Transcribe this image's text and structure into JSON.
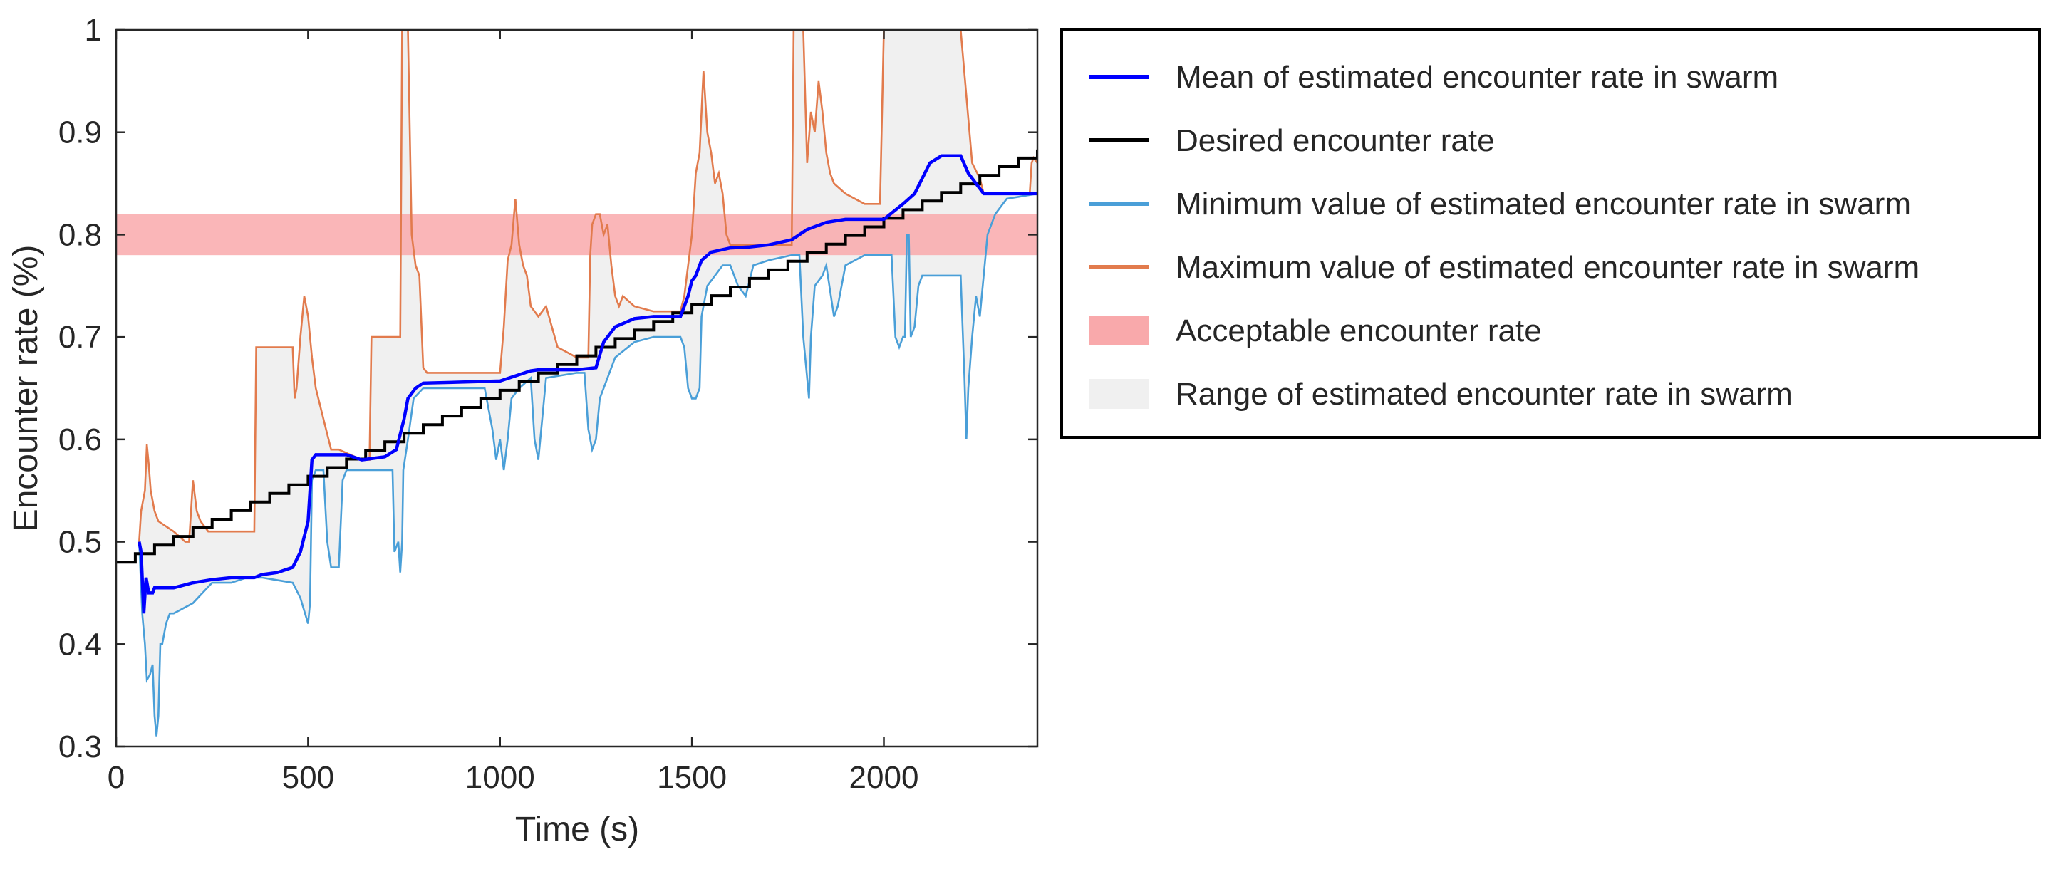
{
  "chart_data": {
    "type": "line",
    "title": "",
    "xlabel": "Time (s)",
    "ylabel": "Encounter rate (%)",
    "xlim": [
      0,
      2400
    ],
    "ylim": [
      0.3,
      1.0
    ],
    "x_ticks": [
      0,
      500,
      1000,
      1500,
      2000
    ],
    "x_tick_labels": [
      "0",
      "500",
      "1000",
      "1500",
      "2000"
    ],
    "y_ticks": [
      0.3,
      0.4,
      0.5,
      0.6,
      0.7,
      0.8,
      0.9,
      1.0
    ],
    "y_tick_labels": [
      "0.3",
      "0.4",
      "0.5",
      "0.6",
      "0.7",
      "0.8",
      "0.9",
      "1"
    ],
    "grid": false,
    "legend_position": "right-outside",
    "colors": {
      "mean": "#0000ff",
      "desired": "#000000",
      "min": "#4a9fd8",
      "max": "#e27b4d",
      "acceptable": "#f9a9ab",
      "range": "#f0f0f0"
    },
    "legend": [
      {
        "key": "mean",
        "label": "Mean of estimated encounter rate in swarm",
        "kind": "line"
      },
      {
        "key": "desired",
        "label": "Desired encounter rate",
        "kind": "line"
      },
      {
        "key": "min",
        "label": "Minimum value of estimated encounter rate in swarm",
        "kind": "line"
      },
      {
        "key": "max",
        "label": "Maximum value of estimated encounter rate in swarm",
        "kind": "line"
      },
      {
        "key": "acceptable",
        "label": "Acceptable encounter rate",
        "kind": "patch"
      },
      {
        "key": "range",
        "label": "Range of estimated encounter rate in swarm",
        "kind": "patch"
      }
    ],
    "acceptable_band": [
      0.78,
      0.82
    ],
    "desired_step": {
      "start": 0.48,
      "increment": 0.0084,
      "interval": 50,
      "x_start": 0,
      "x_end": 2400
    },
    "series": [
      {
        "name": "Mean of estimated encounter rate in swarm",
        "key": "mean",
        "points": [
          [
            60,
            0.5
          ],
          [
            65,
            0.49
          ],
          [
            72,
            0.43
          ],
          [
            78,
            0.465
          ],
          [
            85,
            0.45
          ],
          [
            95,
            0.45
          ],
          [
            100,
            0.455
          ],
          [
            150,
            0.455
          ],
          [
            200,
            0.46
          ],
          [
            250,
            0.463
          ],
          [
            300,
            0.465
          ],
          [
            360,
            0.465
          ],
          [
            380,
            0.468
          ],
          [
            420,
            0.47
          ],
          [
            460,
            0.475
          ],
          [
            480,
            0.49
          ],
          [
            500,
            0.52
          ],
          [
            510,
            0.58
          ],
          [
            520,
            0.585
          ],
          [
            600,
            0.585
          ],
          [
            640,
            0.58
          ],
          [
            700,
            0.583
          ],
          [
            730,
            0.59
          ],
          [
            750,
            0.62
          ],
          [
            760,
            0.64
          ],
          [
            780,
            0.65
          ],
          [
            800,
            0.655
          ],
          [
            900,
            0.656
          ],
          [
            1000,
            0.657
          ],
          [
            1040,
            0.662
          ],
          [
            1080,
            0.667
          ],
          [
            1100,
            0.668
          ],
          [
            1150,
            0.668
          ],
          [
            1200,
            0.668
          ],
          [
            1250,
            0.67
          ],
          [
            1270,
            0.695
          ],
          [
            1300,
            0.71
          ],
          [
            1350,
            0.718
          ],
          [
            1400,
            0.72
          ],
          [
            1470,
            0.72
          ],
          [
            1490,
            0.74
          ],
          [
            1500,
            0.755
          ],
          [
            1510,
            0.76
          ],
          [
            1525,
            0.775
          ],
          [
            1550,
            0.783
          ],
          [
            1600,
            0.787
          ],
          [
            1650,
            0.788
          ],
          [
            1700,
            0.79
          ],
          [
            1760,
            0.795
          ],
          [
            1800,
            0.805
          ],
          [
            1850,
            0.812
          ],
          [
            1900,
            0.815
          ],
          [
            2000,
            0.815
          ],
          [
            2050,
            0.83
          ],
          [
            2080,
            0.84
          ],
          [
            2100,
            0.855
          ],
          [
            2120,
            0.87
          ],
          [
            2150,
            0.877
          ],
          [
            2200,
            0.877
          ],
          [
            2220,
            0.86
          ],
          [
            2240,
            0.85
          ],
          [
            2260,
            0.84
          ],
          [
            2300,
            0.84
          ],
          [
            2400,
            0.84
          ]
        ]
      },
      {
        "name": "Desired encounter rate",
        "key": "desired",
        "style": "step"
      },
      {
        "name": "Minimum value of estimated encounter rate in swarm",
        "key": "min",
        "points": [
          [
            60,
            0.5
          ],
          [
            68,
            0.43
          ],
          [
            75,
            0.4
          ],
          [
            80,
            0.365
          ],
          [
            88,
            0.37
          ],
          [
            95,
            0.38
          ],
          [
            100,
            0.33
          ],
          [
            105,
            0.31
          ],
          [
            110,
            0.33
          ],
          [
            115,
            0.4
          ],
          [
            120,
            0.4
          ],
          [
            130,
            0.42
          ],
          [
            140,
            0.43
          ],
          [
            150,
            0.43
          ],
          [
            200,
            0.44
          ],
          [
            250,
            0.46
          ],
          [
            300,
            0.46
          ],
          [
            340,
            0.465
          ],
          [
            380,
            0.465
          ],
          [
            460,
            0.46
          ],
          [
            480,
            0.445
          ],
          [
            500,
            0.42
          ],
          [
            505,
            0.44
          ],
          [
            510,
            0.56
          ],
          [
            520,
            0.57
          ],
          [
            540,
            0.57
          ],
          [
            550,
            0.5
          ],
          [
            560,
            0.475
          ],
          [
            580,
            0.475
          ],
          [
            590,
            0.56
          ],
          [
            600,
            0.57
          ],
          [
            640,
            0.57
          ],
          [
            700,
            0.57
          ],
          [
            720,
            0.57
          ],
          [
            725,
            0.49
          ],
          [
            735,
            0.5
          ],
          [
            740,
            0.47
          ],
          [
            745,
            0.5
          ],
          [
            748,
            0.57
          ],
          [
            760,
            0.6
          ],
          [
            775,
            0.64
          ],
          [
            800,
            0.65
          ],
          [
            900,
            0.65
          ],
          [
            960,
            0.65
          ],
          [
            980,
            0.61
          ],
          [
            990,
            0.58
          ],
          [
            1000,
            0.6
          ],
          [
            1010,
            0.57
          ],
          [
            1020,
            0.6
          ],
          [
            1030,
            0.64
          ],
          [
            1050,
            0.65
          ],
          [
            1080,
            0.66
          ],
          [
            1090,
            0.6
          ],
          [
            1100,
            0.58
          ],
          [
            1110,
            0.62
          ],
          [
            1120,
            0.66
          ],
          [
            1200,
            0.665
          ],
          [
            1220,
            0.665
          ],
          [
            1230,
            0.61
          ],
          [
            1240,
            0.59
          ],
          [
            1250,
            0.6
          ],
          [
            1260,
            0.64
          ],
          [
            1270,
            0.65
          ],
          [
            1300,
            0.68
          ],
          [
            1350,
            0.695
          ],
          [
            1400,
            0.7
          ],
          [
            1450,
            0.7
          ],
          [
            1470,
            0.7
          ],
          [
            1480,
            0.69
          ],
          [
            1490,
            0.65
          ],
          [
            1500,
            0.64
          ],
          [
            1510,
            0.64
          ],
          [
            1520,
            0.65
          ],
          [
            1525,
            0.72
          ],
          [
            1540,
            0.75
          ],
          [
            1560,
            0.76
          ],
          [
            1580,
            0.77
          ],
          [
            1600,
            0.77
          ],
          [
            1620,
            0.75
          ],
          [
            1640,
            0.74
          ],
          [
            1660,
            0.77
          ],
          [
            1700,
            0.775
          ],
          [
            1760,
            0.78
          ],
          [
            1780,
            0.78
          ],
          [
            1790,
            0.7
          ],
          [
            1800,
            0.66
          ],
          [
            1805,
            0.64
          ],
          [
            1810,
            0.7
          ],
          [
            1820,
            0.75
          ],
          [
            1840,
            0.76
          ],
          [
            1850,
            0.77
          ],
          [
            1870,
            0.72
          ],
          [
            1880,
            0.73
          ],
          [
            1900,
            0.77
          ],
          [
            1950,
            0.78
          ],
          [
            2000,
            0.78
          ],
          [
            2020,
            0.78
          ],
          [
            2030,
            0.7
          ],
          [
            2040,
            0.69
          ],
          [
            2050,
            0.7
          ],
          [
            2055,
            0.7
          ],
          [
            2060,
            0.8
          ],
          [
            2065,
            0.8
          ],
          [
            2070,
            0.7
          ],
          [
            2080,
            0.71
          ],
          [
            2090,
            0.75
          ],
          [
            2100,
            0.76
          ],
          [
            2200,
            0.76
          ],
          [
            2210,
            0.66
          ],
          [
            2215,
            0.6
          ],
          [
            2220,
            0.65
          ],
          [
            2230,
            0.7
          ],
          [
            2240,
            0.74
          ],
          [
            2250,
            0.72
          ],
          [
            2260,
            0.76
          ],
          [
            2270,
            0.8
          ],
          [
            2290,
            0.82
          ],
          [
            2320,
            0.835
          ],
          [
            2400,
            0.84
          ]
        ]
      },
      {
        "name": "Maximum value of estimated encounter rate in swarm",
        "key": "max",
        "points": [
          [
            60,
            0.5
          ],
          [
            65,
            0.53
          ],
          [
            75,
            0.55
          ],
          [
            80,
            0.595
          ],
          [
            85,
            0.575
          ],
          [
            90,
            0.55
          ],
          [
            100,
            0.53
          ],
          [
            110,
            0.52
          ],
          [
            150,
            0.51
          ],
          [
            180,
            0.5
          ],
          [
            190,
            0.5
          ],
          [
            195,
            0.53
          ],
          [
            200,
            0.56
          ],
          [
            210,
            0.53
          ],
          [
            220,
            0.52
          ],
          [
            240,
            0.51
          ],
          [
            360,
            0.51
          ],
          [
            365,
            0.69
          ],
          [
            370,
            0.69
          ],
          [
            460,
            0.69
          ],
          [
            465,
            0.64
          ],
          [
            470,
            0.65
          ],
          [
            480,
            0.7
          ],
          [
            490,
            0.74
          ],
          [
            500,
            0.72
          ],
          [
            510,
            0.68
          ],
          [
            520,
            0.65
          ],
          [
            540,
            0.62
          ],
          [
            560,
            0.59
          ],
          [
            580,
            0.59
          ],
          [
            640,
            0.58
          ],
          [
            660,
            0.58
          ],
          [
            665,
            0.7
          ],
          [
            720,
            0.7
          ],
          [
            740,
            0.7
          ],
          [
            745,
            1.0
          ],
          [
            760,
            1.0
          ],
          [
            770,
            0.8
          ],
          [
            780,
            0.77
          ],
          [
            790,
            0.76
          ],
          [
            800,
            0.67
          ],
          [
            810,
            0.665
          ],
          [
            900,
            0.665
          ],
          [
            960,
            0.665
          ],
          [
            1000,
            0.665
          ],
          [
            1010,
            0.71
          ],
          [
            1020,
            0.775
          ],
          [
            1030,
            0.79
          ],
          [
            1040,
            0.835
          ],
          [
            1050,
            0.79
          ],
          [
            1060,
            0.77
          ],
          [
            1070,
            0.76
          ],
          [
            1080,
            0.73
          ],
          [
            1100,
            0.72
          ],
          [
            1120,
            0.73
          ],
          [
            1150,
            0.69
          ],
          [
            1200,
            0.68
          ],
          [
            1230,
            0.68
          ],
          [
            1235,
            0.78
          ],
          [
            1240,
            0.81
          ],
          [
            1250,
            0.82
          ],
          [
            1260,
            0.82
          ],
          [
            1270,
            0.8
          ],
          [
            1280,
            0.81
          ],
          [
            1290,
            0.77
          ],
          [
            1300,
            0.74
          ],
          [
            1310,
            0.73
          ],
          [
            1320,
            0.74
          ],
          [
            1350,
            0.73
          ],
          [
            1400,
            0.725
          ],
          [
            1470,
            0.725
          ],
          [
            1480,
            0.74
          ],
          [
            1500,
            0.8
          ],
          [
            1510,
            0.86
          ],
          [
            1520,
            0.88
          ],
          [
            1530,
            0.96
          ],
          [
            1540,
            0.9
          ],
          [
            1550,
            0.88
          ],
          [
            1560,
            0.85
          ],
          [
            1570,
            0.86
          ],
          [
            1580,
            0.84
          ],
          [
            1590,
            0.8
          ],
          [
            1600,
            0.79
          ],
          [
            1650,
            0.79
          ],
          [
            1700,
            0.79
          ],
          [
            1760,
            0.79
          ],
          [
            1765,
            1.0
          ],
          [
            1790,
            1.0
          ],
          [
            1800,
            0.87
          ],
          [
            1810,
            0.92
          ],
          [
            1820,
            0.9
          ],
          [
            1830,
            0.95
          ],
          [
            1840,
            0.92
          ],
          [
            1850,
            0.88
          ],
          [
            1860,
            0.86
          ],
          [
            1870,
            0.85
          ],
          [
            1900,
            0.84
          ],
          [
            1950,
            0.83
          ],
          [
            1990,
            0.83
          ],
          [
            2000,
            1.0
          ],
          [
            2010,
            1.0
          ],
          [
            2200,
            1.0
          ],
          [
            2230,
            0.87
          ],
          [
            2250,
            0.855
          ],
          [
            2260,
            0.84
          ],
          [
            2350,
            0.84
          ],
          [
            2380,
            0.84
          ],
          [
            2385,
            0.87
          ],
          [
            2390,
            0.875
          ],
          [
            2400,
            0.87
          ]
        ]
      }
    ]
  }
}
